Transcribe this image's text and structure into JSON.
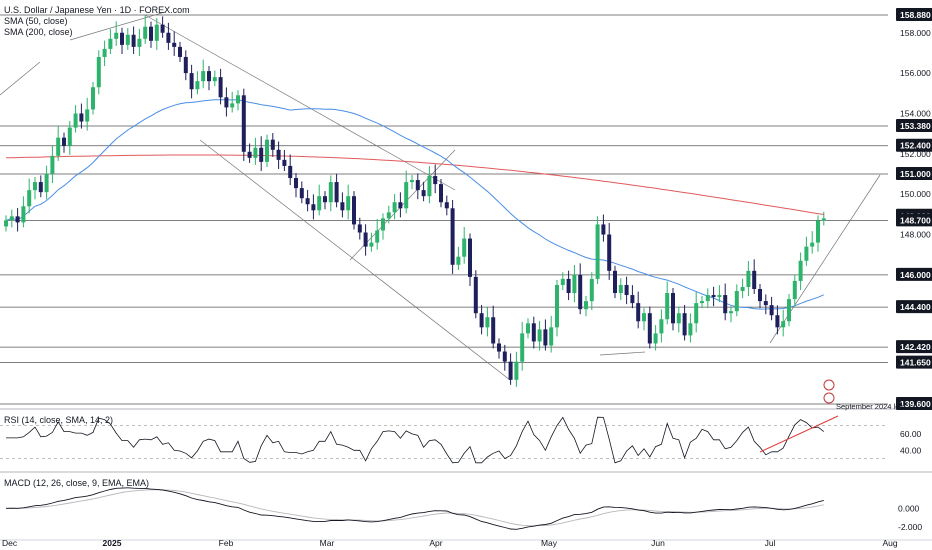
{
  "header": {
    "title": "U.S. Dollar / Japanese Yen · 1D · FOREX.com",
    "sma50": "SMA (50, close)",
    "sma200": "SMA (200, close)"
  },
  "colors": {
    "bull": "#2db36b",
    "bear": "#1f1f5c",
    "sma50": "#4a8ee6",
    "sma200": "#e05a5a",
    "rsi": "#131722",
    "macd": "#131722",
    "signal": "#b8b8b8",
    "trend_red": "#e03a3a",
    "hline": "#555555",
    "channel": "#777777",
    "label_bg": "#131722"
  },
  "price_axis": {
    "ticks": [
      "158.000",
      "156.000",
      "154.000",
      "152.000",
      "150.000",
      "148.000",
      "146.000"
    ],
    "boxed_levels": [
      "158.880",
      "153.380",
      "152.400",
      "151.000",
      "148.930",
      "148.700",
      "146.000",
      "144.400",
      "142.420",
      "141.650",
      "139.600"
    ],
    "current": "148.930"
  },
  "rsi_pane": {
    "title": "RSI (14, close, SMA, 14, 2)",
    "ticks": [
      "60.00",
      "40.00"
    ]
  },
  "macd_pane": {
    "title": "MACD (12, 26, close, 9, EMA, EMA)",
    "ticks": [
      "0.000",
      "-2.000"
    ]
  },
  "time_axis": [
    "Dec",
    "2025",
    "Feb",
    "Mar",
    "Apr",
    "May",
    "Jun",
    "Jul",
    "Aug"
  ],
  "annotations": {
    "september_low": "September 2024 low"
  },
  "chart_data": {
    "type": "candlestick",
    "title": "U.S. Dollar / Japanese Yen · 1D · FOREX.com",
    "x_axis": [
      "Dec",
      "2025",
      "Feb",
      "Mar",
      "Apr",
      "May",
      "Jun",
      "Jul",
      "Aug"
    ],
    "y_range": [
      139.6,
      158.88
    ],
    "horizontal_levels": [
      158.88,
      153.38,
      152.4,
      151.0,
      148.7,
      146.0,
      144.4,
      142.42,
      141.65,
      139.6
    ],
    "last_price": 148.93,
    "closes": [
      148.7,
      148.9,
      148.6,
      149.4,
      150.2,
      150.6,
      150.1,
      151.0,
      151.9,
      152.8,
      152.4,
      153.3,
      154.0,
      153.6,
      154.2,
      155.3,
      156.8,
      157.2,
      157.7,
      158.0,
      157.4,
      157.9,
      157.3,
      157.7,
      158.3,
      157.6,
      158.4,
      158.0,
      157.5,
      157.3,
      156.8,
      156.0,
      155.2,
      155.6,
      156.1,
      155.6,
      155.8,
      154.8,
      154.3,
      154.5,
      154.9,
      152.1,
      151.8,
      152.3,
      151.6,
      152.7,
      152.2,
      151.7,
      151.4,
      150.8,
      150.3,
      149.8,
      149.5,
      149.2,
      149.9,
      149.6,
      150.6,
      149.6,
      149.2,
      149.9,
      148.5,
      148.1,
      147.4,
      147.6,
      148.2,
      148.8,
      149.1,
      149.6,
      149.3,
      150.6,
      150.7,
      150.2,
      149.9,
      150.9,
      150.5,
      149.6,
      149.3,
      146.5,
      146.9,
      147.8,
      145.9,
      144.1,
      143.4,
      143.9,
      142.6,
      142.2,
      141.7,
      140.8,
      141.7,
      143.1,
      143.6,
      142.7,
      143.3,
      142.5,
      143.4,
      145.5,
      145.8,
      145.1,
      146.0,
      144.3,
      144.7,
      145.8,
      148.5,
      148.0,
      146.2,
      145.1,
      145.5,
      145.0,
      144.6,
      143.7,
      144.1,
      142.6,
      143.1,
      143.8,
      145.1,
      143.6,
      144.1,
      143.0,
      143.6,
      144.6,
      144.7,
      145.0,
      144.9,
      145.0,
      144.1,
      144.2,
      145.2,
      145.4,
      146.2,
      145.3,
      144.7,
      144.5,
      144.0,
      143.4,
      143.7,
      144.8,
      145.7,
      146.7,
      147.4,
      147.6,
      148.7,
      148.8
    ]
  }
}
